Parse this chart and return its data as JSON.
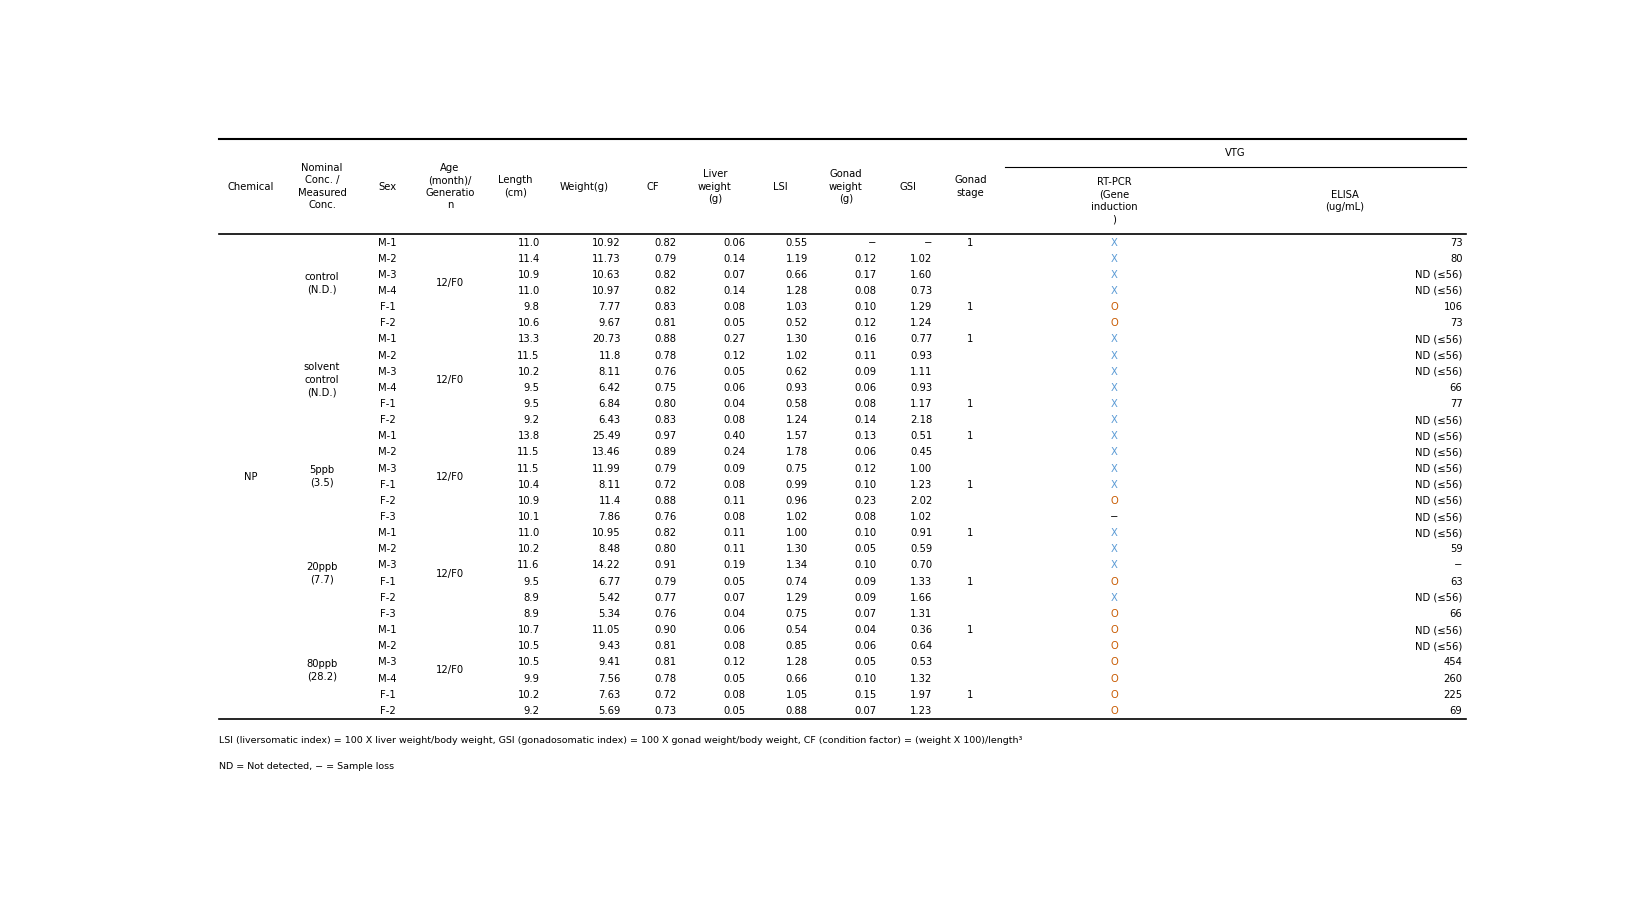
{
  "footnote1": "LSI (liversomatic index) = 100 X liver weight/body weight, GSI (gonadosomatic index) = 100 X gonad weight/body weight, CF (condition factor) = (weight X 100)/length³",
  "footnote2": "ND = Not detected, − = Sample loss",
  "bg_color": "#ffffff",
  "text_color": "#000000",
  "x_color": "#5b9bd5",
  "o_color": "#c85a00",
  "group_start_rows": [
    0,
    6,
    12,
    18,
    24
  ],
  "group_labels": [
    "control\n(N.D.)",
    "solvent\ncontrol\n(N.D.)",
    "5ppb\n(3.5)",
    "20ppb\n(7.7)",
    "80ppb\n(28.2)"
  ],
  "group_sizes": [
    6,
    6,
    6,
    6,
    6
  ],
  "rows": [
    [
      "M-1",
      "12/F0",
      "11.0",
      "10.92",
      "0.82",
      "0.06",
      "0.55",
      "−",
      "−",
      "1",
      "X",
      "73"
    ],
    [
      "M-2",
      "",
      "11.4",
      "11.73",
      "0.79",
      "0.14",
      "1.19",
      "0.12",
      "1.02",
      "",
      "X",
      "80"
    ],
    [
      "M-3",
      "",
      "10.9",
      "10.63",
      "0.82",
      "0.07",
      "0.66",
      "0.17",
      "1.60",
      "",
      "X",
      "ND (≤56)"
    ],
    [
      "M-4",
      "",
      "11.0",
      "10.97",
      "0.82",
      "0.14",
      "1.28",
      "0.08",
      "0.73",
      "",
      "X",
      "ND (≤56)"
    ],
    [
      "F-1",
      "",
      "9.8",
      "7.77",
      "0.83",
      "0.08",
      "1.03",
      "0.10",
      "1.29",
      "1",
      "O",
      "106"
    ],
    [
      "F-2",
      "",
      "10.6",
      "9.67",
      "0.81",
      "0.05",
      "0.52",
      "0.12",
      "1.24",
      "",
      "O",
      "73"
    ],
    [
      "M-1",
      "12/F0",
      "13.3",
      "20.73",
      "0.88",
      "0.27",
      "1.30",
      "0.16",
      "0.77",
      "1",
      "X",
      "ND (≤56)"
    ],
    [
      "M-2",
      "",
      "11.5",
      "11.8",
      "0.78",
      "0.12",
      "1.02",
      "0.11",
      "0.93",
      "",
      "X",
      "ND (≤56)"
    ],
    [
      "M-3",
      "",
      "10.2",
      "8.11",
      "0.76",
      "0.05",
      "0.62",
      "0.09",
      "1.11",
      "",
      "X",
      "ND (≤56)"
    ],
    [
      "M-4",
      "",
      "9.5",
      "6.42",
      "0.75",
      "0.06",
      "0.93",
      "0.06",
      "0.93",
      "",
      "X",
      "66"
    ],
    [
      "F-1",
      "",
      "9.5",
      "6.84",
      "0.80",
      "0.04",
      "0.58",
      "0.08",
      "1.17",
      "1",
      "X",
      "77"
    ],
    [
      "F-2",
      "",
      "9.2",
      "6.43",
      "0.83",
      "0.08",
      "1.24",
      "0.14",
      "2.18",
      "",
      "X",
      "ND (≤56)"
    ],
    [
      "M-1",
      "12/F0",
      "13.8",
      "25.49",
      "0.97",
      "0.40",
      "1.57",
      "0.13",
      "0.51",
      "1",
      "X",
      "ND (≤56)"
    ],
    [
      "M-2",
      "",
      "11.5",
      "13.46",
      "0.89",
      "0.24",
      "1.78",
      "0.06",
      "0.45",
      "",
      "X",
      "ND (≤56)"
    ],
    [
      "M-3",
      "",
      "11.5",
      "11.99",
      "0.79",
      "0.09",
      "0.75",
      "0.12",
      "1.00",
      "",
      "X",
      "ND (≤56)"
    ],
    [
      "F-1",
      "",
      "10.4",
      "8.11",
      "0.72",
      "0.08",
      "0.99",
      "0.10",
      "1.23",
      "1",
      "X",
      "ND (≤56)"
    ],
    [
      "F-2",
      "",
      "10.9",
      "11.4",
      "0.88",
      "0.11",
      "0.96",
      "0.23",
      "2.02",
      "",
      "O",
      "ND (≤56)"
    ],
    [
      "F-3",
      "",
      "10.1",
      "7.86",
      "0.76",
      "0.08",
      "1.02",
      "0.08",
      "1.02",
      "",
      "−",
      "ND (≤56)"
    ],
    [
      "M-1",
      "12/F0",
      "11.0",
      "10.95",
      "0.82",
      "0.11",
      "1.00",
      "0.10",
      "0.91",
      "1",
      "X",
      "ND (≤56)"
    ],
    [
      "M-2",
      "",
      "10.2",
      "8.48",
      "0.80",
      "0.11",
      "1.30",
      "0.05",
      "0.59",
      "",
      "X",
      "59"
    ],
    [
      "M-3",
      "",
      "11.6",
      "14.22",
      "0.91",
      "0.19",
      "1.34",
      "0.10",
      "0.70",
      "",
      "X",
      "−"
    ],
    [
      "F-1",
      "",
      "9.5",
      "6.77",
      "0.79",
      "0.05",
      "0.74",
      "0.09",
      "1.33",
      "1",
      "O",
      "63"
    ],
    [
      "F-2",
      "",
      "8.9",
      "5.42",
      "0.77",
      "0.07",
      "1.29",
      "0.09",
      "1.66",
      "",
      "X",
      "ND (≤56)"
    ],
    [
      "F-3",
      "",
      "8.9",
      "5.34",
      "0.76",
      "0.04",
      "0.75",
      "0.07",
      "1.31",
      "",
      "O",
      "66"
    ],
    [
      "M-1",
      "12/F0",
      "10.7",
      "11.05",
      "0.90",
      "0.06",
      "0.54",
      "0.04",
      "0.36",
      "1",
      "O",
      "ND (≤56)"
    ],
    [
      "M-2",
      "",
      "10.5",
      "9.43",
      "0.81",
      "0.08",
      "0.85",
      "0.06",
      "0.64",
      "",
      "O",
      "ND (≤56)"
    ],
    [
      "M-3",
      "",
      "10.5",
      "9.41",
      "0.81",
      "0.12",
      "1.28",
      "0.05",
      "0.53",
      "",
      "O",
      "454"
    ],
    [
      "M-4",
      "",
      "9.9",
      "7.56",
      "0.78",
      "0.05",
      "0.66",
      "0.10",
      "1.32",
      "",
      "O",
      "260"
    ],
    [
      "F-1",
      "",
      "10.2",
      "7.63",
      "0.72",
      "0.08",
      "1.05",
      "0.15",
      "1.97",
      "1",
      "O",
      "225"
    ],
    [
      "F-2",
      "",
      "9.2",
      "5.69",
      "0.73",
      "0.05",
      "0.88",
      "0.07",
      "1.23",
      "",
      "O",
      "69"
    ]
  ]
}
